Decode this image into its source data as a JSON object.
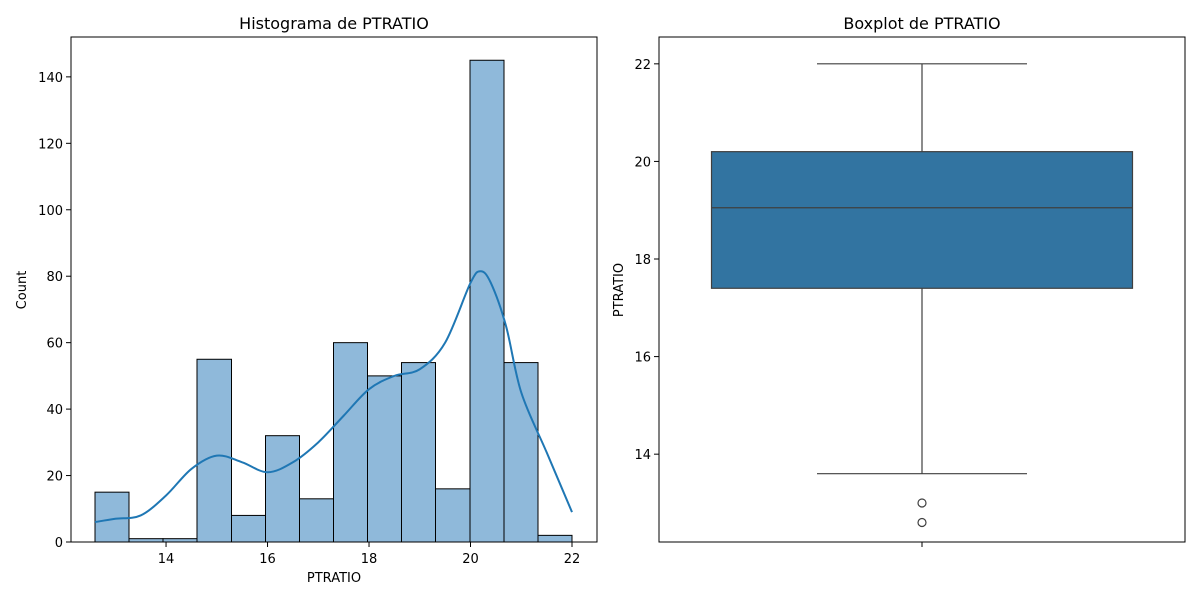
{
  "chart_data": [
    {
      "type": "bar",
      "subtype": "histogram",
      "title": "Histograma de PTRATIO",
      "xlabel": "PTRATIO",
      "ylabel": "Count",
      "xlim": [
        12.6,
        22.0
      ],
      "ylim": [
        0,
        152
      ],
      "xticks": [
        14,
        16,
        18,
        20,
        22
      ],
      "yticks": [
        0,
        20,
        40,
        60,
        80,
        100,
        120,
        140
      ],
      "bins": [
        {
          "x0": 12.6,
          "x1": 13.27,
          "count": 15
        },
        {
          "x0": 13.27,
          "x1": 13.94,
          "count": 1
        },
        {
          "x0": 13.94,
          "x1": 14.61,
          "count": 1
        },
        {
          "x0": 14.61,
          "x1": 15.29,
          "count": 55
        },
        {
          "x0": 15.29,
          "x1": 15.96,
          "count": 8
        },
        {
          "x0": 15.96,
          "x1": 16.63,
          "count": 32
        },
        {
          "x0": 16.63,
          "x1": 17.3,
          "count": 13
        },
        {
          "x0": 17.3,
          "x1": 17.97,
          "count": 60
        },
        {
          "x0": 17.97,
          "x1": 18.64,
          "count": 50
        },
        {
          "x0": 18.64,
          "x1": 19.31,
          "count": 54
        },
        {
          "x0": 19.31,
          "x1": 19.99,
          "count": 16
        },
        {
          "x0": 19.99,
          "x1": 20.66,
          "count": 145
        },
        {
          "x0": 20.66,
          "x1": 21.33,
          "count": 54
        },
        {
          "x0": 21.33,
          "x1": 22.0,
          "count": 2
        }
      ],
      "kde": {
        "x": [
          12.6,
          13.0,
          13.5,
          14.0,
          14.5,
          15.0,
          15.5,
          16.0,
          16.5,
          17.0,
          17.5,
          18.0,
          18.5,
          19.0,
          19.5,
          20.0,
          20.2,
          20.4,
          20.7,
          21.0,
          21.5,
          22.0
        ],
        "y": [
          6,
          7,
          8,
          14,
          22,
          26,
          24,
          21,
          24,
          30,
          38,
          46,
          50,
          52,
          60,
          78,
          81.5,
          78,
          65,
          45,
          27,
          9
        ]
      },
      "colors": {
        "bar_fill": "#8fb9da",
        "bar_edge": "#000000",
        "kde_line": "#1f77b4"
      },
      "grid": false
    },
    {
      "type": "boxplot",
      "title": "Boxplot de PTRATIO",
      "ylabel": "PTRATIO",
      "ylim": [
        12.2,
        22.55
      ],
      "yticks": [
        14,
        16,
        18,
        20,
        22
      ],
      "stats": {
        "whisker_low": 13.6,
        "q1": 17.4,
        "median": 19.05,
        "q3": 20.2,
        "whisker_high": 22.0
      },
      "outliers": [
        13.0,
        12.6
      ],
      "colors": {
        "box_fill": "#3274a1",
        "lines": "#3f3f3f"
      },
      "grid": false
    }
  ]
}
